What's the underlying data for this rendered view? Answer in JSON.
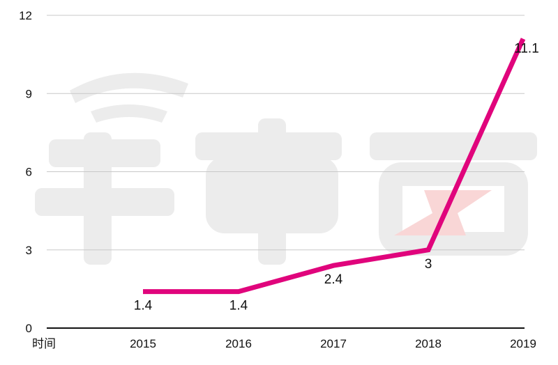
{
  "chart_data": {
    "type": "line",
    "title": "",
    "xlabel": "时间",
    "ylabel": "",
    "categories": [
      "2015",
      "2016",
      "2017",
      "2018",
      "2019"
    ],
    "series": [
      {
        "name": "",
        "values": [
          1.4,
          1.4,
          2.4,
          3,
          11.1
        ],
        "color": "#e0047c"
      }
    ],
    "data_labels": [
      "1.4",
      "1.4",
      "2.4",
      "3",
      "11.1"
    ],
    "ylim": [
      0,
      12
    ],
    "yticks": [
      0,
      3,
      6,
      9,
      12
    ],
    "grid": true,
    "legend": "none"
  },
  "watermark": {
    "text": "车东西",
    "color": "#ececec",
    "accent_color": "#f9d6d6"
  },
  "colors": {
    "line": "#e0047c",
    "grid": "#c8c8c8",
    "axis": "#111111"
  }
}
